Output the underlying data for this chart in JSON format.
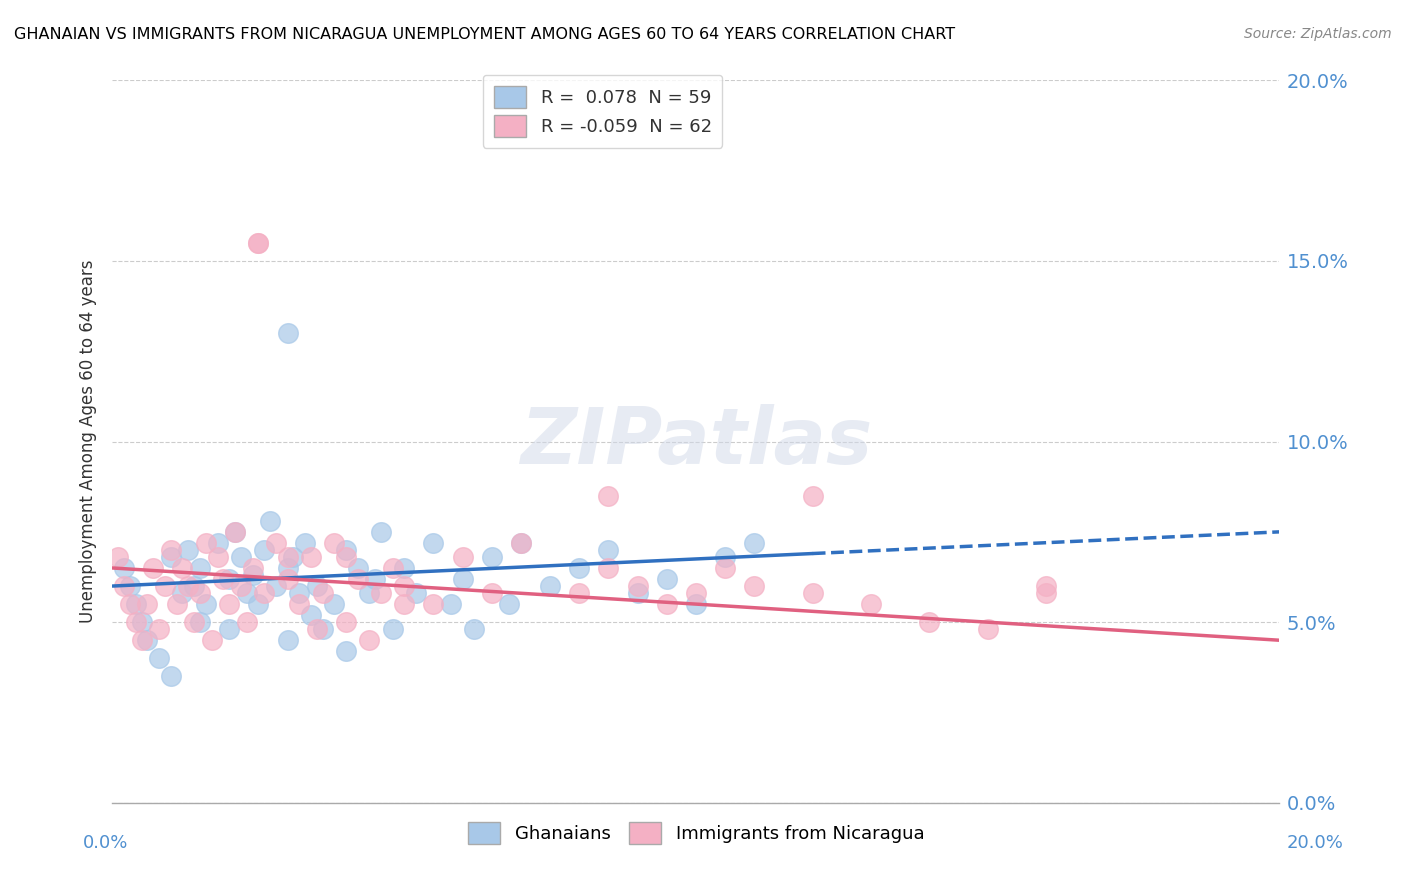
{
  "title": "GHANAIAN VS IMMIGRANTS FROM NICARAGUA UNEMPLOYMENT AMONG AGES 60 TO 64 YEARS CORRELATION CHART",
  "source": "Source: ZipAtlas.com",
  "ylabel": "Unemployment Among Ages 60 to 64 years",
  "xmin": 0.0,
  "xmax": 0.2,
  "ymin": 0.0,
  "ymax": 0.2,
  "yticks": [
    0.0,
    0.05,
    0.1,
    0.15,
    0.2
  ],
  "ytick_labels": [
    "0.0%",
    "5.0%",
    "10.0%",
    "15.0%",
    "20.0%"
  ],
  "legend1_label": "R =  0.078  N = 59",
  "legend2_label": "R = -0.059  N = 62",
  "series1_color": "#a8c8e8",
  "series2_color": "#f4b0c4",
  "trendline1_color": "#3070c0",
  "trendline2_color": "#e06080",
  "watermark": "ZIPatlas",
  "blue_trend_x_end": 0.12,
  "blue_trend_y_start": 0.06,
  "blue_trend_y_end": 0.075,
  "pink_trend_y_start": 0.065,
  "pink_trend_y_end": 0.045,
  "ghanaians_x": [
    0.002,
    0.003,
    0.004,
    0.005,
    0.006,
    0.008,
    0.01,
    0.01,
    0.012,
    0.013,
    0.014,
    0.015,
    0.015,
    0.016,
    0.018,
    0.02,
    0.02,
    0.021,
    0.022,
    0.023,
    0.024,
    0.025,
    0.026,
    0.027,
    0.028,
    0.03,
    0.03,
    0.031,
    0.032,
    0.033,
    0.034,
    0.035,
    0.036,
    0.038,
    0.04,
    0.04,
    0.042,
    0.044,
    0.045,
    0.046,
    0.048,
    0.05,
    0.052,
    0.055,
    0.058,
    0.06,
    0.062,
    0.065,
    0.068,
    0.07,
    0.075,
    0.08,
    0.085,
    0.09,
    0.095,
    0.1,
    0.105,
    0.11,
    0.03
  ],
  "ghanaians_y": [
    0.065,
    0.06,
    0.055,
    0.05,
    0.045,
    0.04,
    0.068,
    0.035,
    0.058,
    0.07,
    0.06,
    0.065,
    0.05,
    0.055,
    0.072,
    0.062,
    0.048,
    0.075,
    0.068,
    0.058,
    0.063,
    0.055,
    0.07,
    0.078,
    0.06,
    0.065,
    0.045,
    0.068,
    0.058,
    0.072,
    0.052,
    0.06,
    0.048,
    0.055,
    0.07,
    0.042,
    0.065,
    0.058,
    0.062,
    0.075,
    0.048,
    0.065,
    0.058,
    0.072,
    0.055,
    0.062,
    0.048,
    0.068,
    0.055,
    0.072,
    0.06,
    0.065,
    0.07,
    0.058,
    0.062,
    0.055,
    0.068,
    0.072,
    0.13
  ],
  "nicaragua_x": [
    0.001,
    0.002,
    0.003,
    0.004,
    0.005,
    0.006,
    0.007,
    0.008,
    0.009,
    0.01,
    0.011,
    0.012,
    0.013,
    0.014,
    0.015,
    0.016,
    0.017,
    0.018,
    0.019,
    0.02,
    0.021,
    0.022,
    0.023,
    0.024,
    0.025,
    0.026,
    0.028,
    0.03,
    0.032,
    0.034,
    0.036,
    0.038,
    0.04,
    0.042,
    0.044,
    0.046,
    0.048,
    0.05,
    0.055,
    0.06,
    0.065,
    0.07,
    0.08,
    0.085,
    0.09,
    0.095,
    0.1,
    0.105,
    0.11,
    0.12,
    0.13,
    0.14,
    0.15,
    0.16,
    0.025,
    0.04,
    0.085,
    0.12,
    0.16,
    0.03,
    0.035,
    0.05
  ],
  "nicaragua_y": [
    0.068,
    0.06,
    0.055,
    0.05,
    0.045,
    0.055,
    0.065,
    0.048,
    0.06,
    0.07,
    0.055,
    0.065,
    0.06,
    0.05,
    0.058,
    0.072,
    0.045,
    0.068,
    0.062,
    0.055,
    0.075,
    0.06,
    0.05,
    0.065,
    0.155,
    0.058,
    0.072,
    0.062,
    0.055,
    0.068,
    0.058,
    0.072,
    0.05,
    0.062,
    0.045,
    0.058,
    0.065,
    0.06,
    0.055,
    0.068,
    0.058,
    0.072,
    0.058,
    0.065,
    0.06,
    0.055,
    0.058,
    0.065,
    0.06,
    0.058,
    0.055,
    0.05,
    0.048,
    0.058,
    0.155,
    0.068,
    0.085,
    0.085,
    0.06,
    0.068,
    0.048,
    0.055
  ]
}
